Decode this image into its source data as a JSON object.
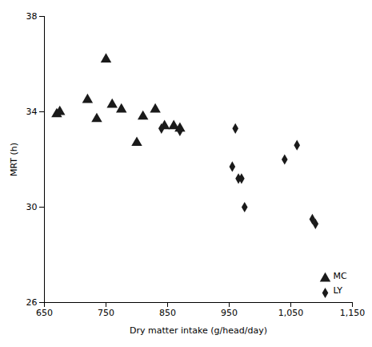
{
  "chart_data": {
    "type": "scatter",
    "xlabel": "Dry matter intake (g/head/day)",
    "ylabel": "MRT (h)",
    "series": [
      {
        "name": "MC",
        "color": "#1a1a1a",
        "marker": "triangle",
        "x": [
          670,
          675,
          720,
          735,
          750,
          760,
          775,
          800,
          810,
          830,
          845,
          860,
          870
        ],
        "values": [
          33.9,
          34.0,
          34.5,
          33.7,
          36.2,
          34.3,
          34.1,
          32.7,
          33.8,
          34.1,
          33.4,
          33.4,
          33.3
        ]
      },
      {
        "name": "LY",
        "color": "#1a1a1a",
        "marker": "diamond",
        "x": [
          840,
          870,
          955,
          960,
          965,
          970,
          975,
          1040,
          1060,
          1085,
          1090
        ],
        "values": [
          33.3,
          33.2,
          31.7,
          33.3,
          31.2,
          31.2,
          30.0,
          32.0,
          32.6,
          29.5,
          29.3
        ]
      }
    ],
    "xlim": [
      650,
      1150
    ],
    "ylim": [
      26,
      38
    ],
    "xticks": [
      650,
      750,
      850,
      950,
      1050,
      1150
    ],
    "yticks": [
      26,
      30,
      34,
      38
    ],
    "legend": "lower right",
    "grid": false
  }
}
